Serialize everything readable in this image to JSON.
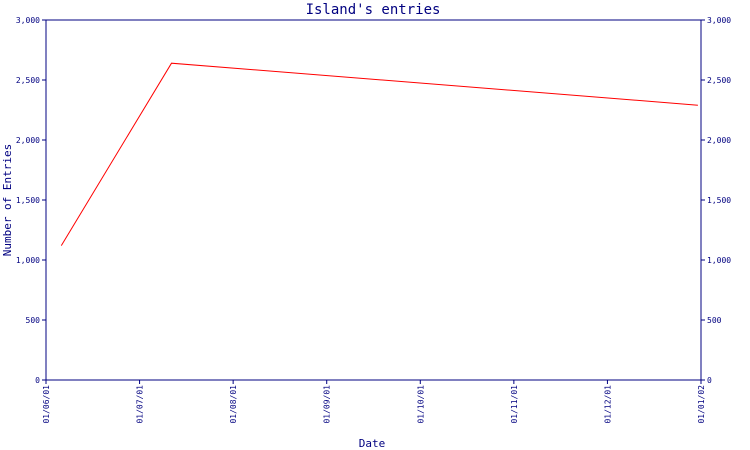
{
  "chart_data": {
    "type": "line",
    "title": "Island's entries",
    "xlabel": "Date",
    "ylabel": "Number of Entries",
    "x_ticks": [
      "01/06/01",
      "01/07/01",
      "01/08/01",
      "01/09/01",
      "01/10/01",
      "01/11/01",
      "01/12/01",
      "01/01/02"
    ],
    "y_ticks": [
      "0",
      "500",
      "1,000",
      "1,500",
      "2,000",
      "2,500",
      "3,000"
    ],
    "ylim": [
      0,
      3000
    ],
    "xlim": [
      "2001-06-01",
      "2002-01-01"
    ],
    "grid": false,
    "series": [
      {
        "color": "#ff0000",
        "points": [
          {
            "x": "2001-06-06",
            "y": 1120
          },
          {
            "x": "2001-07-12",
            "y": 2640
          },
          {
            "x": "2001-12-31",
            "y": 2290
          }
        ]
      }
    ]
  },
  "colors": {
    "axis": "#000080",
    "line": "#ff0000",
    "background": "#ffffff"
  }
}
